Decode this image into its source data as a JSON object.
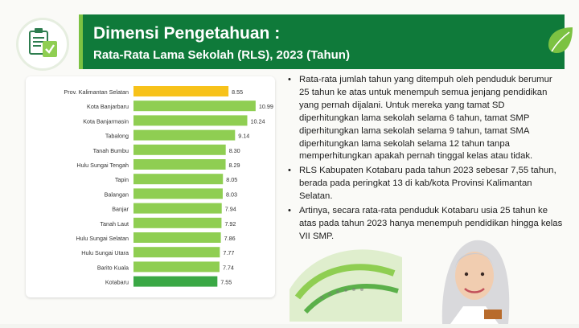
{
  "header": {
    "title": "Dimensi Pengetahuan :",
    "subtitle": "Rata-Rata Lama Sekolah (RLS), 2023 (Tahun)"
  },
  "icons": {
    "header_icon": "document-checklist-icon",
    "leaf": "leaf-icon"
  },
  "colors": {
    "title_bar": "#0f7a3a",
    "bar_default": "#8fce52",
    "bar_province": "#f7c21a",
    "bar_highlight": "#3aa845"
  },
  "chart_data": {
    "type": "bar",
    "orientation": "horizontal",
    "categories": [
      "Prov. Kalimantan Selatan",
      "Kota Banjarbaru",
      "Kota Banjarmasin",
      "Tabalong",
      "Tanah Bumbu",
      "Hulu Sungai Tengah",
      "Tapin",
      "Balangan",
      "Banjar",
      "Tanah Laut",
      "Hulu Sungai Selatan",
      "Hulu Sungai Utara",
      "Barito Kuala",
      "Kotabaru"
    ],
    "values": [
      8.55,
      10.99,
      10.24,
      9.14,
      8.3,
      8.29,
      8.05,
      8.03,
      7.94,
      7.92,
      7.86,
      7.77,
      7.74,
      7.55
    ],
    "labels": [
      "8.55",
      "10.99",
      "10.24",
      "9.14",
      "8.30",
      "8.29",
      "8.05",
      "8.03",
      "7.94",
      "7.92",
      "7.86",
      "7.77",
      "7.74",
      "7.55"
    ],
    "title": "",
    "xlabel": "",
    "ylabel": "",
    "xlim": [
      0,
      11
    ],
    "grid": false,
    "legend": "none"
  },
  "notes": [
    "Rata-rata jumlah tahun yang ditempuh oleh penduduk berumur 25 tahun ke atas untuk menempuh semua jenjang pendidikan yang pernah dijalani. Untuk mereka yang tamat SD diperhitungkan lama sekolah selama 6 tahun, tamat SMP diperhitungkan lama sekolah selama 9 tahun, tamat SMA diperhitungkan lama sekolah selama 12 tahun tanpa memperhitungkan apakah pernah tinggal kelas atau tidak.",
    "RLS Kabupaten Kotabaru pada tahun 2023 sebesar 7,55 tahun, berada pada peringkat 13 di kab/kota Provinsi Kalimantan Selatan.",
    "Artinya, secara rata-rata penduduk Kotabaru usia 25 tahun ke atas pada tahun 2023 hanya menempuh pendidikan hingga kelas VII SMP."
  ]
}
